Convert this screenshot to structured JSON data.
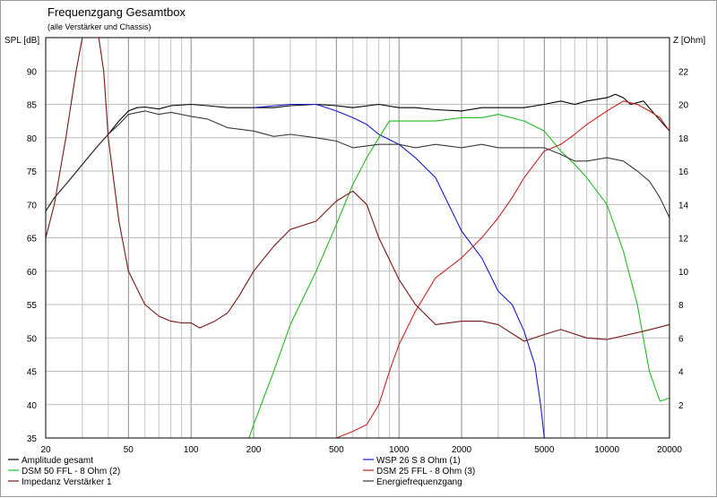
{
  "chart_data": {
    "type": "line",
    "title": "Frequenzgang Gesamtbox",
    "subtitle": "(alle Verstärker und Chassis)",
    "ylabel": "SPL [dB]",
    "y2label": "Z [Ohm]",
    "x_scale": "log",
    "xlim": [
      20,
      20000
    ],
    "ylim": [
      35,
      95
    ],
    "y2lim": [
      0,
      24
    ],
    "x_ticks": [
      20,
      50,
      100,
      200,
      500,
      1000,
      2000,
      5000,
      10000,
      20000
    ],
    "y_ticks": [
      35,
      40,
      45,
      50,
      55,
      60,
      65,
      70,
      75,
      80,
      85,
      90
    ],
    "y2_ticks": [
      2,
      4,
      6,
      8,
      10,
      12,
      14,
      16,
      18,
      20,
      22
    ],
    "grid": true,
    "legend_position": "bottom",
    "series": [
      {
        "name": "Amplitude gesamt",
        "color": "#000000",
        "axis": "left",
        "points": [
          [
            20,
            69
          ],
          [
            22,
            71
          ],
          [
            25,
            73
          ],
          [
            30,
            76
          ],
          [
            35,
            78.5
          ],
          [
            40,
            80.5
          ],
          [
            45,
            82.5
          ],
          [
            50,
            84
          ],
          [
            55,
            84.5
          ],
          [
            60,
            84.6
          ],
          [
            70,
            84.3
          ],
          [
            80,
            84.8
          ],
          [
            100,
            85
          ],
          [
            120,
            84.8
          ],
          [
            150,
            84.5
          ],
          [
            200,
            84.5
          ],
          [
            250,
            84.5
          ],
          [
            300,
            84.8
          ],
          [
            400,
            85
          ],
          [
            500,
            84.8
          ],
          [
            600,
            84.5
          ],
          [
            800,
            85
          ],
          [
            1000,
            84.5
          ],
          [
            1200,
            84.5
          ],
          [
            1500,
            84.2
          ],
          [
            2000,
            84
          ],
          [
            2500,
            84.5
          ],
          [
            3000,
            84.5
          ],
          [
            4000,
            84.5
          ],
          [
            5000,
            85
          ],
          [
            6000,
            85.5
          ],
          [
            7000,
            85
          ],
          [
            8000,
            85.5
          ],
          [
            10000,
            86
          ],
          [
            11000,
            86.5
          ],
          [
            12000,
            86
          ],
          [
            13000,
            85
          ],
          [
            15000,
            85.5
          ],
          [
            17000,
            83.5
          ],
          [
            20000,
            81
          ]
        ]
      },
      {
        "name": "WSP 26 S 8 Ohm (1)",
        "color": "#1a1acc",
        "axis": "left",
        "points": [
          [
            200,
            84.5
          ],
          [
            300,
            85
          ],
          [
            400,
            85
          ],
          [
            500,
            84
          ],
          [
            600,
            83
          ],
          [
            700,
            82
          ],
          [
            800,
            80.5
          ],
          [
            1000,
            79
          ],
          [
            1200,
            77
          ],
          [
            1500,
            74
          ],
          [
            2000,
            66
          ],
          [
            2500,
            62
          ],
          [
            3000,
            57
          ],
          [
            3500,
            55
          ],
          [
            4000,
            51
          ],
          [
            4500,
            46
          ],
          [
            4800,
            40
          ],
          [
            5000,
            35
          ]
        ]
      },
      {
        "name": "DSM 50 FFL - 8 Ohm (2)",
        "color": "#22bb22",
        "axis": "left",
        "points": [
          [
            20,
            35
          ],
          [
            100,
            35
          ],
          [
            190,
            35
          ],
          [
            200,
            37
          ],
          [
            250,
            45
          ],
          [
            300,
            52
          ],
          [
            400,
            60
          ],
          [
            500,
            67
          ],
          [
            600,
            73
          ],
          [
            700,
            77
          ],
          [
            800,
            80
          ],
          [
            900,
            82.5
          ],
          [
            1000,
            82.5
          ],
          [
            1200,
            82.5
          ],
          [
            1500,
            82.5
          ],
          [
            2000,
            83
          ],
          [
            2500,
            83
          ],
          [
            3000,
            83.5
          ],
          [
            4000,
            82.5
          ],
          [
            5000,
            81
          ],
          [
            6000,
            78
          ],
          [
            7000,
            76
          ],
          [
            8000,
            74
          ],
          [
            10000,
            70
          ],
          [
            12000,
            63
          ],
          [
            14000,
            55
          ],
          [
            16000,
            45
          ],
          [
            18000,
            40.5
          ],
          [
            20000,
            41
          ]
        ]
      },
      {
        "name": "DSM 25 FFL - 8 Ohm (3)",
        "color": "#cc2222",
        "axis": "left",
        "points": [
          [
            20,
            35
          ],
          [
            300,
            35
          ],
          [
            500,
            35
          ],
          [
            600,
            36
          ],
          [
            700,
            37
          ],
          [
            800,
            40
          ],
          [
            900,
            45
          ],
          [
            1000,
            49
          ],
          [
            1200,
            54
          ],
          [
            1500,
            59
          ],
          [
            2000,
            62
          ],
          [
            2500,
            65
          ],
          [
            3000,
            68
          ],
          [
            3500,
            71
          ],
          [
            4000,
            74
          ],
          [
            5000,
            78
          ],
          [
            6000,
            79
          ],
          [
            7000,
            80.5
          ],
          [
            8000,
            82
          ],
          [
            10000,
            84
          ],
          [
            12000,
            85.5
          ],
          [
            14000,
            85
          ],
          [
            16000,
            84
          ],
          [
            18000,
            83
          ],
          [
            20000,
            81
          ]
        ]
      },
      {
        "name": "Impedanz Verstärker 1",
        "color": "#7a1515",
        "axis": "right",
        "points": [
          [
            20,
            12
          ],
          [
            22,
            14
          ],
          [
            25,
            18
          ],
          [
            28,
            22
          ],
          [
            30,
            24
          ],
          [
            33,
            24
          ],
          [
            36,
            24
          ],
          [
            38,
            22
          ],
          [
            40,
            18
          ],
          [
            45,
            13
          ],
          [
            50,
            10
          ],
          [
            60,
            8
          ],
          [
            70,
            7.3
          ],
          [
            80,
            7
          ],
          [
            90,
            6.9
          ],
          [
            100,
            6.9
          ],
          [
            110,
            6.6
          ],
          [
            130,
            7
          ],
          [
            150,
            7.5
          ],
          [
            170,
            8.5
          ],
          [
            200,
            10
          ],
          [
            250,
            11.5
          ],
          [
            300,
            12.5
          ],
          [
            400,
            13
          ],
          [
            500,
            14.2
          ],
          [
            600,
            14.8
          ],
          [
            700,
            14
          ],
          [
            800,
            12
          ],
          [
            1000,
            9.5
          ],
          [
            1200,
            8
          ],
          [
            1500,
            6.8
          ],
          [
            2000,
            7
          ],
          [
            2500,
            7
          ],
          [
            3000,
            6.8
          ],
          [
            4000,
            5.8
          ],
          [
            5000,
            6.2
          ],
          [
            6000,
            6.5
          ],
          [
            8000,
            6
          ],
          [
            10000,
            5.9
          ],
          [
            15000,
            6.4
          ],
          [
            20000,
            6.8
          ]
        ]
      },
      {
        "name": "Energiefrequenzgang",
        "color": "#3a3a3a",
        "axis": "left",
        "points": [
          [
            20,
            69
          ],
          [
            22,
            71
          ],
          [
            25,
            73
          ],
          [
            30,
            76
          ],
          [
            35,
            78.5
          ],
          [
            40,
            80.5
          ],
          [
            45,
            82
          ],
          [
            50,
            83.5
          ],
          [
            60,
            84
          ],
          [
            70,
            83.5
          ],
          [
            80,
            83.8
          ],
          [
            100,
            83.2
          ],
          [
            120,
            82.8
          ],
          [
            150,
            81.5
          ],
          [
            200,
            81
          ],
          [
            250,
            80.2
          ],
          [
            300,
            80.5
          ],
          [
            400,
            80
          ],
          [
            500,
            79.5
          ],
          [
            600,
            78.5
          ],
          [
            800,
            79
          ],
          [
            1000,
            79
          ],
          [
            1200,
            78.5
          ],
          [
            1500,
            79
          ],
          [
            2000,
            78.5
          ],
          [
            2500,
            79
          ],
          [
            3000,
            78.5
          ],
          [
            4000,
            78.5
          ],
          [
            5000,
            78.5
          ],
          [
            6000,
            77.5
          ],
          [
            7000,
            76.5
          ],
          [
            8000,
            76.5
          ],
          [
            10000,
            77
          ],
          [
            12000,
            76.5
          ],
          [
            14000,
            75
          ],
          [
            16000,
            73.5
          ],
          [
            18000,
            71
          ],
          [
            20000,
            68
          ]
        ]
      }
    ]
  }
}
